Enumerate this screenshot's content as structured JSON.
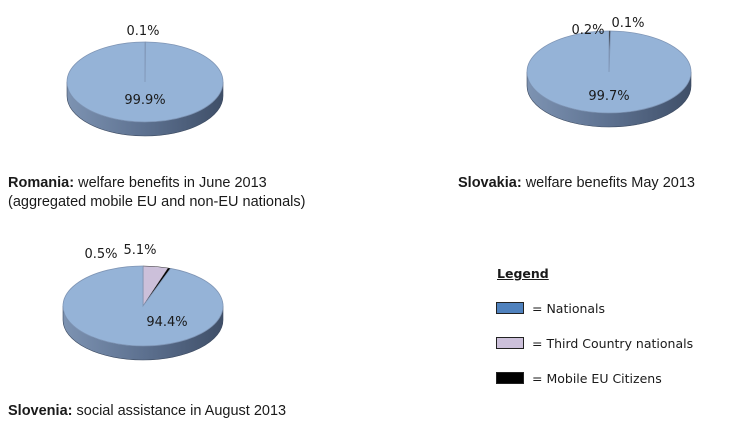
{
  "chart_data": [
    {
      "type": "pie",
      "categories": [
        "Nationals",
        "Mobile EU Citizens"
      ],
      "values": [
        99.9,
        0.1
      ],
      "data_labels": [
        "99.9%",
        "0.1%"
      ],
      "caption_bold": "Romania:",
      "caption_text": "welfare benefits in June 2013",
      "caption_line2": "(aggregated mobile EU and non-EU nationals)"
    },
    {
      "type": "pie",
      "categories": [
        "Nationals",
        "Third Country nationals",
        "Mobile EU Citizens"
      ],
      "values": [
        99.7,
        0.1,
        0.2
      ],
      "data_labels": [
        "99.7%",
        "0.1%",
        "0.2%"
      ],
      "caption_bold": "Slovakia:",
      "caption_text": "welfare benefits May 2013"
    },
    {
      "type": "pie",
      "categories": [
        "Nationals",
        "Third Country nationals",
        "Mobile EU Citizens"
      ],
      "values": [
        94.4,
        5.1,
        0.5
      ],
      "data_labels": [
        "94.4%",
        "5.1%",
        "0.5%"
      ],
      "caption_bold": "Slovenia:",
      "caption_text": "social assistance in August 2013"
    }
  ],
  "legend": {
    "title": "Legend",
    "items": [
      {
        "label": "= Nationals",
        "color": "#4f81bd"
      },
      {
        "label": "= Third Country nationals",
        "color": "#ccc0da"
      },
      {
        "label": "= Mobile EU Citizens",
        "color": "#000000"
      }
    ]
  },
  "colors": {
    "Nationals": "#95b3d7",
    "Third Country nationals": "#ccc0da",
    "Mobile EU Citizens": "#000000"
  }
}
